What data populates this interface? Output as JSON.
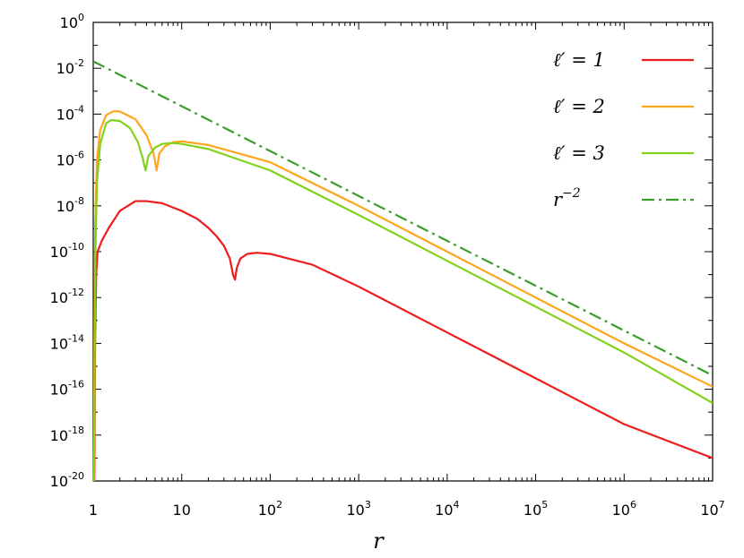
{
  "chart_data": {
    "type": "line",
    "xlabel": "r",
    "ylabel": "",
    "xscale": "log",
    "yscale": "log",
    "xlim": [
      1,
      10000000
    ],
    "ylim": [
      1e-20,
      1
    ],
    "grid": false,
    "legend_position": "top-right",
    "x_ticks": [
      {
        "value": 1,
        "base": "1",
        "exp": ""
      },
      {
        "value": 10,
        "base": "10",
        "exp": ""
      },
      {
        "value": 100,
        "base": "10",
        "exp": "2"
      },
      {
        "value": 1000,
        "base": "10",
        "exp": "3"
      },
      {
        "value": 10000,
        "base": "10",
        "exp": "4"
      },
      {
        "value": 100000,
        "base": "10",
        "exp": "5"
      },
      {
        "value": 1000000,
        "base": "10",
        "exp": "6"
      },
      {
        "value": 10000000,
        "base": "10",
        "exp": "7"
      }
    ],
    "y_ticks": [
      {
        "value": 1,
        "base": "10",
        "exp": "0"
      },
      {
        "value": 0.01,
        "base": "10",
        "exp": "-2"
      },
      {
        "value": 0.0001,
        "base": "10",
        "exp": "-4"
      },
      {
        "value": 1e-06,
        "base": "10",
        "exp": "-6"
      },
      {
        "value": 1e-08,
        "base": "10",
        "exp": "-8"
      },
      {
        "value": 1e-10,
        "base": "10",
        "exp": "-10"
      },
      {
        "value": 1e-12,
        "base": "10",
        "exp": "-12"
      },
      {
        "value": 1e-14,
        "base": "10",
        "exp": "-14"
      },
      {
        "value": 1e-16,
        "base": "10",
        "exp": "-16"
      },
      {
        "value": 1e-18,
        "base": "10",
        "exp": "-18"
      },
      {
        "value": 1e-20,
        "base": "10",
        "exp": "-20"
      }
    ],
    "series": [
      {
        "name": "ℓ′ = 1",
        "color": "#ee1c1c",
        "dash": "solid",
        "points": [
          [
            1.03,
            1e-20
          ],
          [
            1.05,
            1e-14
          ],
          [
            1.08,
            1e-11
          ],
          [
            1.12,
            1e-10
          ],
          [
            1.25,
            3e-10
          ],
          [
            1.5,
            1.1e-09
          ],
          [
            2,
            6e-09
          ],
          [
            3,
            1.6e-08
          ],
          [
            4,
            1.6e-08
          ],
          [
            6,
            1.3e-08
          ],
          [
            10,
            6e-09
          ],
          [
            15,
            2.7e-09
          ],
          [
            20,
            1.1e-09
          ],
          [
            25,
            4.5e-10
          ],
          [
            30,
            1.8e-10
          ],
          [
            35,
            5e-11
          ],
          [
            38,
            1e-11
          ],
          [
            40,
            6e-12
          ],
          [
            42,
            2e-11
          ],
          [
            46,
            5e-11
          ],
          [
            55,
            8e-11
          ],
          [
            70,
            9e-11
          ],
          [
            100,
            8e-11
          ],
          [
            300,
            2.7e-11
          ],
          [
            1000,
            3e-12
          ],
          [
            10000,
            3e-14
          ],
          [
            100000,
            3e-16
          ],
          [
            1000000,
            3e-18
          ],
          [
            10000000,
            1e-19
          ]
        ]
      },
      {
        "name": "ℓ′ = 2",
        "color": "#ffa51c",
        "dash": "solid",
        "points": [
          [
            1.02,
            1e-20
          ],
          [
            1.03,
            1e-14
          ],
          [
            1.05,
            1e-09
          ],
          [
            1.1,
            1e-06
          ],
          [
            1.2,
            2e-05
          ],
          [
            1.4,
            9e-05
          ],
          [
            1.7,
            0.000135
          ],
          [
            2,
            0.00013
          ],
          [
            3,
            6e-05
          ],
          [
            4,
            1.2e-05
          ],
          [
            4.8,
            2e-06
          ],
          [
            5.2,
            3.5e-07
          ],
          [
            5.6,
            2e-06
          ],
          [
            6.5,
            4e-06
          ],
          [
            8,
            6e-06
          ],
          [
            10,
            6.5e-06
          ],
          [
            20,
            4.5e-06
          ],
          [
            100,
            8e-07
          ],
          [
            1000,
            1e-08
          ],
          [
            10000,
            1e-10
          ],
          [
            100000,
            1e-12
          ],
          [
            1000000,
            1e-14
          ],
          [
            10000000,
            1.3e-16
          ]
        ]
      },
      {
        "name": "ℓ′ = 3",
        "color": "#84d11c",
        "dash": "solid",
        "points": [
          [
            1.02,
            1e-20
          ],
          [
            1.04,
            1e-14
          ],
          [
            1.06,
            1e-10
          ],
          [
            1.1,
            1e-07
          ],
          [
            1.2,
            5e-06
          ],
          [
            1.4,
            4e-05
          ],
          [
            1.6,
            5.5e-05
          ],
          [
            2,
            5e-05
          ],
          [
            2.6,
            2.5e-05
          ],
          [
            3.2,
            6e-06
          ],
          [
            3.6,
            1.3e-06
          ],
          [
            3.9,
            3.5e-07
          ],
          [
            4.2,
            1.5e-06
          ],
          [
            5,
            3.5e-06
          ],
          [
            6,
            5e-06
          ],
          [
            8,
            5.5e-06
          ],
          [
            10,
            5e-06
          ],
          [
            20,
            3e-06
          ],
          [
            100,
            3.5e-07
          ],
          [
            1000,
            4e-09
          ],
          [
            10000,
            4e-11
          ],
          [
            100000,
            4e-13
          ],
          [
            1000000,
            4e-15
          ],
          [
            10000000,
            2.5e-17
          ]
        ]
      },
      {
        "name": "r^{-2}",
        "color": "#3a9f2a",
        "dash": "dashdot",
        "points": [
          [
            1,
            0.02
          ],
          [
            10000000,
            4e-16
          ]
        ]
      }
    ],
    "legend": [
      {
        "main": "ℓ′ = 1",
        "sup": ""
      },
      {
        "main": "ℓ′ = 2",
        "sup": ""
      },
      {
        "main": "ℓ′ = 3",
        "sup": ""
      },
      {
        "main": "r",
        "sup": "−2"
      }
    ]
  }
}
